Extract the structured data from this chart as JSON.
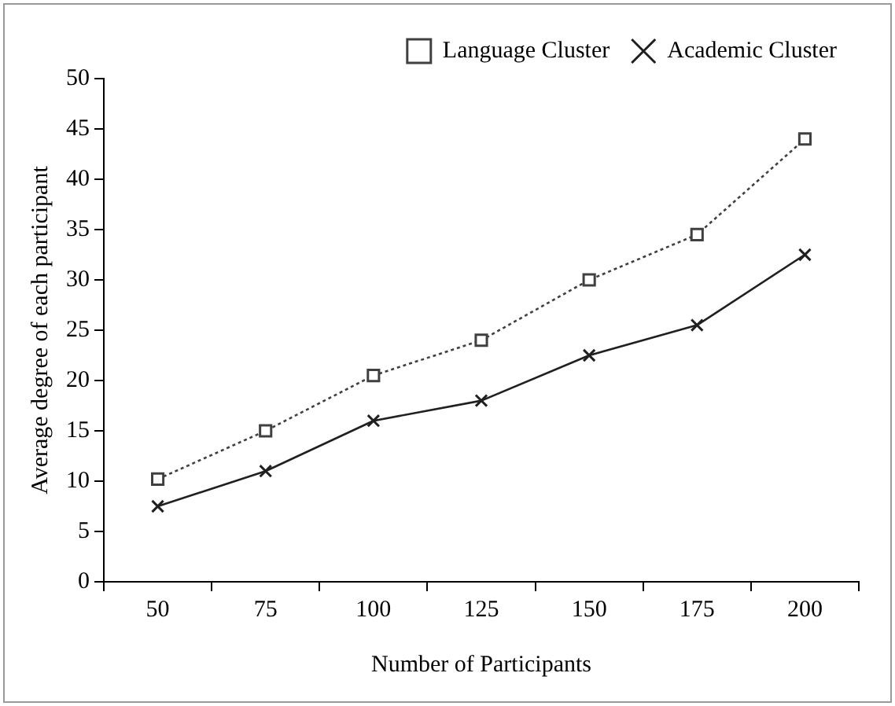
{
  "chart_data": {
    "type": "line",
    "xlabel": "Number of Participants",
    "ylabel": "Average degree of each participant",
    "categories": [
      "50",
      "75",
      "100",
      "125",
      "150",
      "175",
      "200"
    ],
    "series": [
      {
        "name": "Language Cluster",
        "color": "#404040",
        "values": [
          10.2,
          15,
          20.5,
          24,
          30,
          34.5,
          44
        ],
        "marker": "square",
        "line_style": "dotted"
      },
      {
        "name": "Academic Cluster",
        "color": "#202020",
        "values": [
          7.5,
          11,
          16,
          18,
          22.5,
          25.5,
          32.5
        ],
        "marker": "cross",
        "line_style": "solid"
      }
    ],
    "ylim": [
      0,
      50
    ],
    "yticks": [
      0,
      5,
      10,
      15,
      20,
      25,
      30,
      35,
      40,
      45,
      50
    ],
    "grid": false,
    "legend": "top"
  }
}
